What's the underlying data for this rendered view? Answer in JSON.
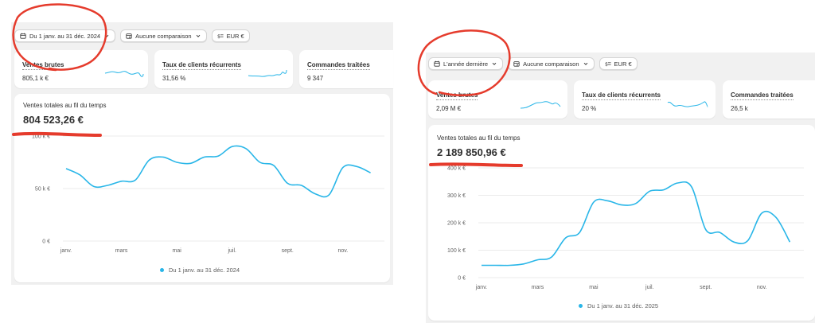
{
  "accent_color": "#29b6e8",
  "annotation_color": "#e53b2c",
  "left": {
    "toolbar": {
      "date_range": "Du 1 janv. au 31 déc. 2024",
      "comparison": "Aucune comparaison",
      "currency": "EUR €"
    },
    "metrics": [
      {
        "label": "Ventes brutes",
        "value": "805,1 k €"
      },
      {
        "label": "Taux de clients récurrents",
        "value": "31,56 %"
      },
      {
        "label": "Commandes traitées",
        "value": "9 347"
      }
    ],
    "chart": {
      "title": "Ventes totales au fil du temps",
      "total": "804 523,26 €",
      "legend": "Du 1 janv. au 31 déc. 2024"
    }
  },
  "right": {
    "toolbar": {
      "date_range": "L'année dernière",
      "comparison": "Aucune comparaison",
      "currency": "EUR €"
    },
    "metrics": [
      {
        "label": "Ventes brutes",
        "value": "2,09 M €"
      },
      {
        "label": "Taux de clients récurrents",
        "value": "20 %"
      },
      {
        "label": "Commandes traitées",
        "value": "26,5 k"
      }
    ],
    "chart": {
      "title": "Ventes totales au fil du temps",
      "total": "2 189 850,96 €",
      "legend": "Du 1 janv. au 31 déc. 2025"
    }
  },
  "chart_data": [
    {
      "type": "line",
      "title": "Ventes totales au fil du temps",
      "x_ticks": [
        "janv.",
        "mars",
        "mai",
        "juil.",
        "sept.",
        "nov."
      ],
      "y_ticks": [
        "0 €",
        "50 k €",
        "100 k €"
      ],
      "ylim": [
        0,
        100000
      ],
      "grid": true,
      "legend_position": "bottom",
      "series": [
        {
          "name": "Du 1 janv. au 31 déc. 2024",
          "x": [
            1,
            1.5,
            2,
            2.5,
            3,
            3.5,
            4,
            4.5,
            5,
            5.5,
            6,
            6.5,
            7,
            7.5,
            8,
            8.5,
            9,
            9.5,
            10,
            10.5,
            11,
            11.5,
            12
          ],
          "values": [
            69000,
            63000,
            52000,
            53000,
            57000,
            58000,
            77000,
            80000,
            75000,
            74000,
            80000,
            81000,
            90000,
            88000,
            75000,
            72000,
            55000,
            53000,
            45000,
            44000,
            70000,
            71000,
            65000
          ]
        }
      ]
    },
    {
      "type": "line",
      "title": "Ventes totales au fil du temps",
      "x_ticks": [
        "janv.",
        "mars",
        "mai",
        "juil.",
        "sept.",
        "nov."
      ],
      "y_ticks": [
        "0 €",
        "100 k €",
        "200 k €",
        "300 k €",
        "400 k €"
      ],
      "ylim": [
        0,
        400000
      ],
      "grid": true,
      "legend_position": "bottom",
      "series": [
        {
          "name": "Du 1 janv. au 31 déc. 2025",
          "x": [
            1,
            1.5,
            2,
            2.5,
            3,
            3.5,
            4,
            4.5,
            5,
            5.5,
            6,
            6.5,
            7,
            7.5,
            8,
            8.5,
            9,
            9.5,
            10,
            10.5,
            11,
            11.5,
            12
          ],
          "values": [
            45000,
            45000,
            45000,
            50000,
            65000,
            75000,
            145000,
            165000,
            275000,
            280000,
            265000,
            270000,
            315000,
            320000,
            345000,
            330000,
            175000,
            165000,
            130000,
            135000,
            235000,
            220000,
            130000
          ]
        }
      ]
    }
  ]
}
